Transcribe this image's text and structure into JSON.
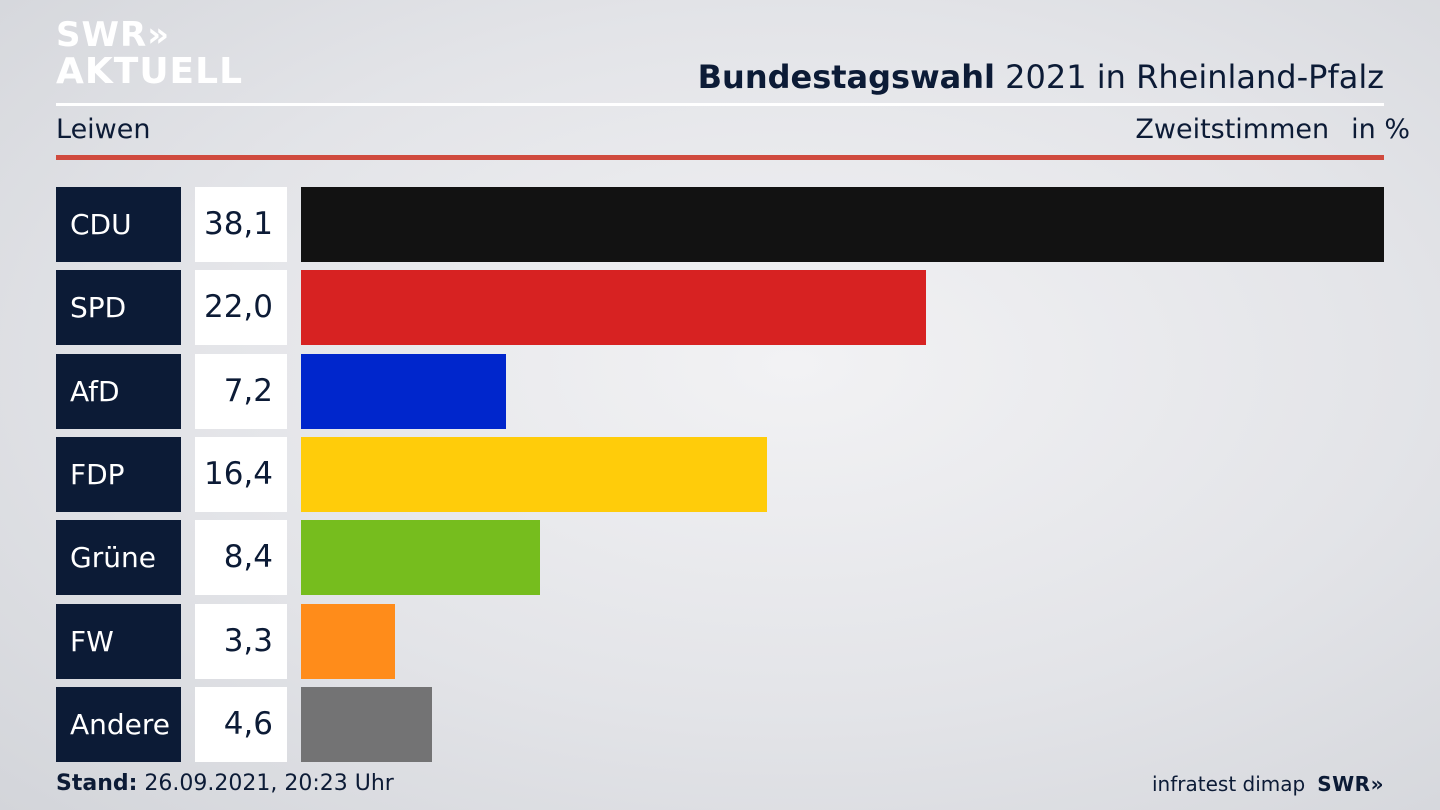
{
  "logo": {
    "line1": "SWR»",
    "line2": "AKTUELL"
  },
  "header": {
    "title_bold": "Bundestagswahl",
    "title_rest": " 2021 in Rheinland-Pfalz",
    "location": "Leiwen",
    "measure": "Zweitstimmen",
    "unit": "in %"
  },
  "chart_data": {
    "type": "bar",
    "orientation": "horizontal",
    "title": "Bundestagswahl 2021 in Rheinland-Pfalz",
    "subtitle": "Leiwen",
    "xlabel": "",
    "ylabel": "Zweitstimmen in %",
    "categories": [
      "CDU",
      "SPD",
      "AfD",
      "FDP",
      "Grüne",
      "FW",
      "Andere"
    ],
    "values": [
      38.1,
      22.0,
      7.2,
      16.4,
      8.4,
      3.3,
      4.6
    ],
    "value_labels": [
      "38,1",
      "22,0",
      "7,2",
      "16,4",
      "8,4",
      "3,3",
      "4,6"
    ],
    "colors": [
      "#121212",
      "#d72222",
      "#0026cc",
      "#ffcc0a",
      "#76bd1e",
      "#ff8c1a",
      "#737374"
    ],
    "xlim": [
      0,
      38.1
    ],
    "grid": false,
    "legend": "none"
  },
  "footer": {
    "stand_label": "Stand:",
    "stand_value": " 26.09.2021, 20:23 Uhr",
    "source": "infratest dimap",
    "brand": "SWR»"
  },
  "colors": {
    "navy": "#0c1b36",
    "accent_red": "#d04a3e"
  }
}
